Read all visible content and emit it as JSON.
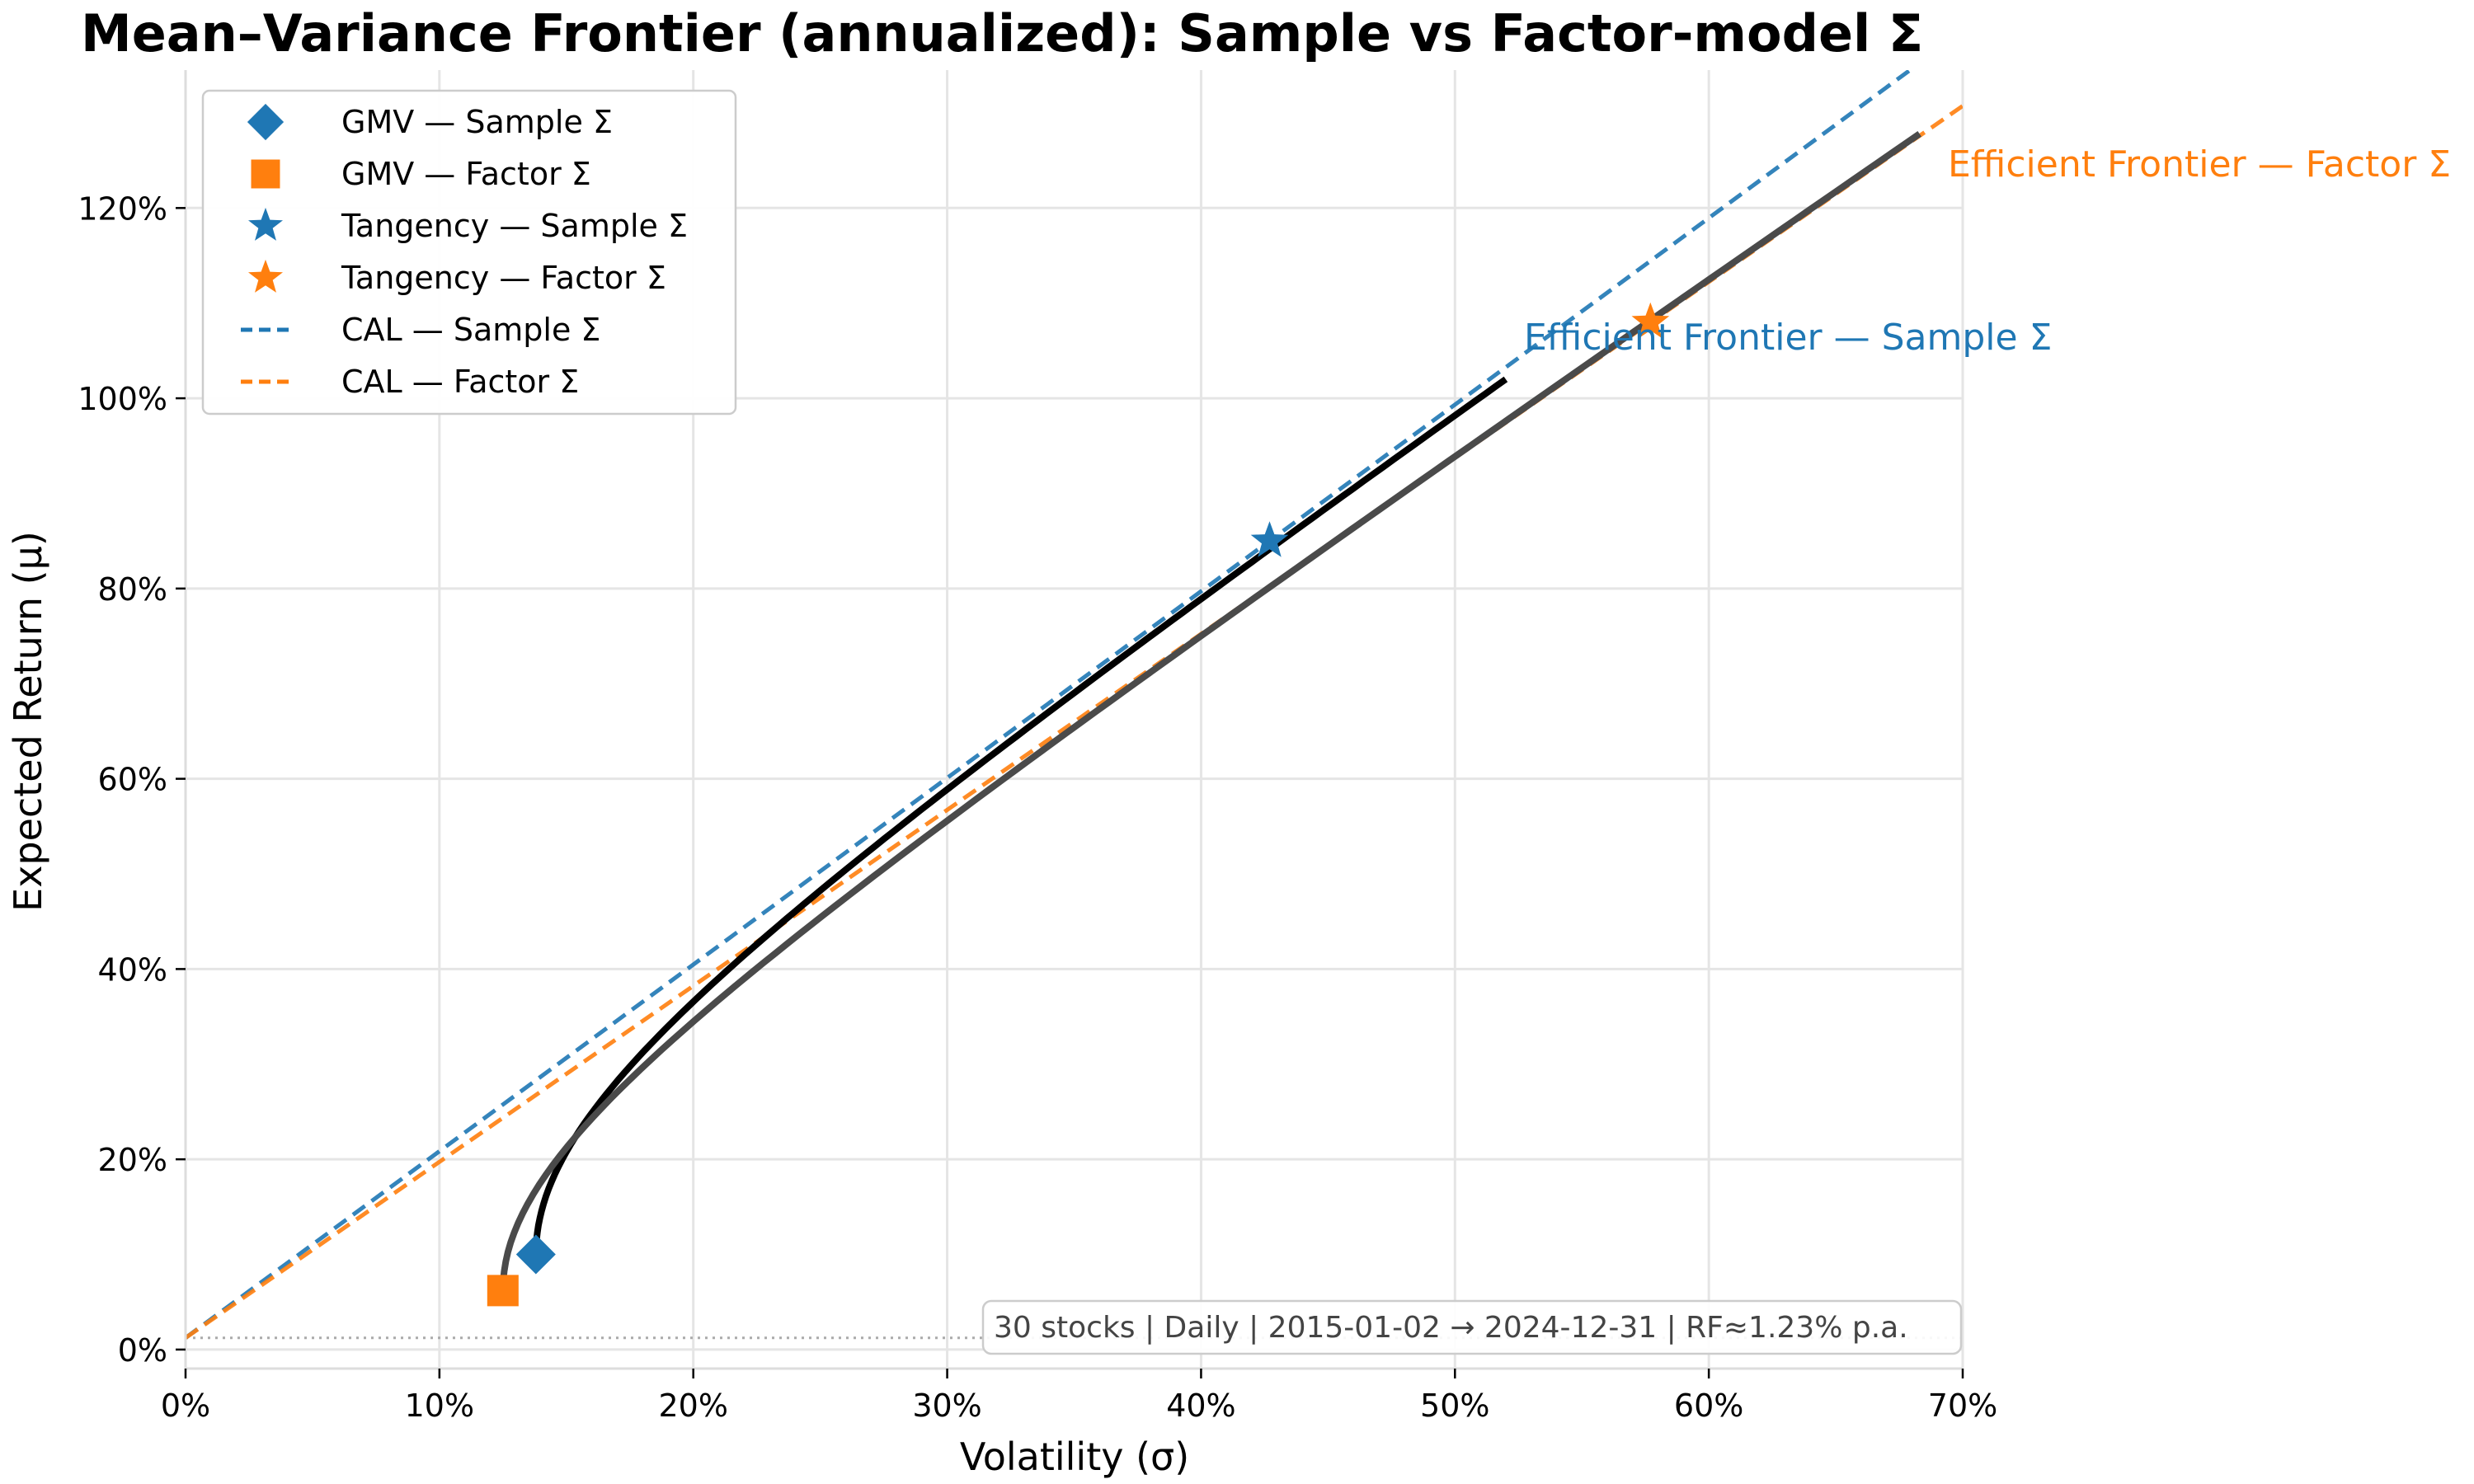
{
  "colors": {
    "sample": "#1f77b4",
    "factor": "#ff7f0e",
    "frontier_sample": "#000000",
    "frontier_factor": "#4a4a4a",
    "grid": "#e5e5e5",
    "rf_line": "#aaaaaa"
  },
  "chart_data": {
    "type": "line",
    "title": "Mean–Variance Frontier (annualized): Sample vs Factor-model Σ",
    "xlabel": "Volatility (σ)",
    "ylabel": "Expected Return (μ)",
    "xlim": [
      0,
      0.7
    ],
    "ylim": [
      -0.02,
      1.345
    ],
    "x_ticks": [
      0,
      0.1,
      0.2,
      0.3,
      0.4,
      0.5,
      0.6,
      0.7
    ],
    "x_tick_labels": [
      "0%",
      "10%",
      "20%",
      "30%",
      "40%",
      "50%",
      "60%",
      "70%"
    ],
    "y_ticks": [
      0,
      0.2,
      0.4,
      0.6,
      0.8,
      1.0,
      1.2
    ],
    "y_tick_labels": [
      "0%",
      "20%",
      "40%",
      "60%",
      "80%",
      "100%",
      "120%"
    ],
    "grid": true,
    "legend_position": "top-left",
    "risk_free_rate": 0.0123,
    "series": [
      {
        "name": "Efficient Frontier — Sample Σ",
        "kind": "frontier",
        "color_key": "frontier_sample",
        "label_color_key": "sample",
        "gmv": [
          0.138,
          0.1
        ],
        "end": [
          0.52,
          1.02
        ]
      },
      {
        "name": "Efficient Frontier — Factor Σ",
        "kind": "frontier",
        "color_key": "frontier_factor",
        "label_color_key": "factor",
        "gmv": [
          0.125,
          0.062
        ],
        "end": [
          0.683,
          1.278
        ]
      }
    ],
    "points": [
      {
        "name": "GMV — Sample Σ",
        "marker": "diamond",
        "color_key": "sample",
        "x": 0.138,
        "y": 0.1
      },
      {
        "name": "GMV — Factor Σ",
        "marker": "square",
        "color_key": "factor",
        "x": 0.125,
        "y": 0.062
      },
      {
        "name": "Tangency — Sample Σ",
        "marker": "star",
        "color_key": "sample",
        "x": 0.427,
        "y": 0.85
      },
      {
        "name": "Tangency — Factor Σ",
        "marker": "star",
        "color_key": "factor",
        "x": 0.577,
        "y": 1.08
      }
    ],
    "cal_lines": [
      {
        "name": "CAL — Sample Σ",
        "color_key": "sample",
        "intercept": 0.0123,
        "slope": 1.962
      },
      {
        "name": "CAL — Factor Σ",
        "color_key": "factor",
        "intercept": 0.0123,
        "slope": 1.85
      }
    ],
    "legend": [
      {
        "label": "GMV — Sample Σ",
        "marker": "diamond",
        "color_key": "sample"
      },
      {
        "label": "GMV — Factor Σ",
        "marker": "square",
        "color_key": "factor"
      },
      {
        "label": "Tangency — Sample Σ",
        "marker": "star",
        "color_key": "sample"
      },
      {
        "label": "Tangency — Factor Σ",
        "marker": "star",
        "color_key": "factor"
      },
      {
        "label": "CAL — Sample Σ",
        "marker": "dashed-line",
        "color_key": "sample"
      },
      {
        "label": "CAL — Factor Σ",
        "marker": "dashed-line",
        "color_key": "factor"
      }
    ],
    "annotation": "30 stocks | Daily | 2015-01-02 → 2024-12-31 | RF≈1.23% p.a."
  }
}
